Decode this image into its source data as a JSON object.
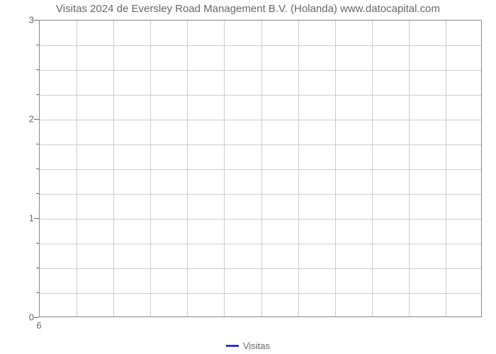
{
  "chart": {
    "type": "line",
    "title": "Visitas 2024 de Eversley Road Management B.V. (Holanda) www.datocapital.com",
    "title_fontsize": 15,
    "title_color": "#666666",
    "background_color": "#ffffff",
    "plot_border_color": "#888888",
    "grid_color": "#cccccc",
    "axis_tick_color": "#666666",
    "axis_label_color": "#666666",
    "axis_label_fontsize": 13,
    "y_axis": {
      "ylim": [
        0,
        3
      ],
      "major_ticks": [
        0,
        1,
        2,
        3
      ],
      "minor_divisions_per_major": 4,
      "labels": [
        "0",
        "1",
        "2",
        "3"
      ]
    },
    "x_axis": {
      "labels": [
        "6"
      ],
      "positions": [
        0
      ]
    },
    "vertical_gridlines": 12,
    "series": [
      {
        "name": "Visitas",
        "color": "#3333cc",
        "line_width": 3,
        "data_x": [],
        "data_y": []
      }
    ],
    "legend": {
      "position": "bottom-center",
      "items": [
        {
          "label": "Visitas",
          "color": "#3333cc"
        }
      ]
    }
  }
}
